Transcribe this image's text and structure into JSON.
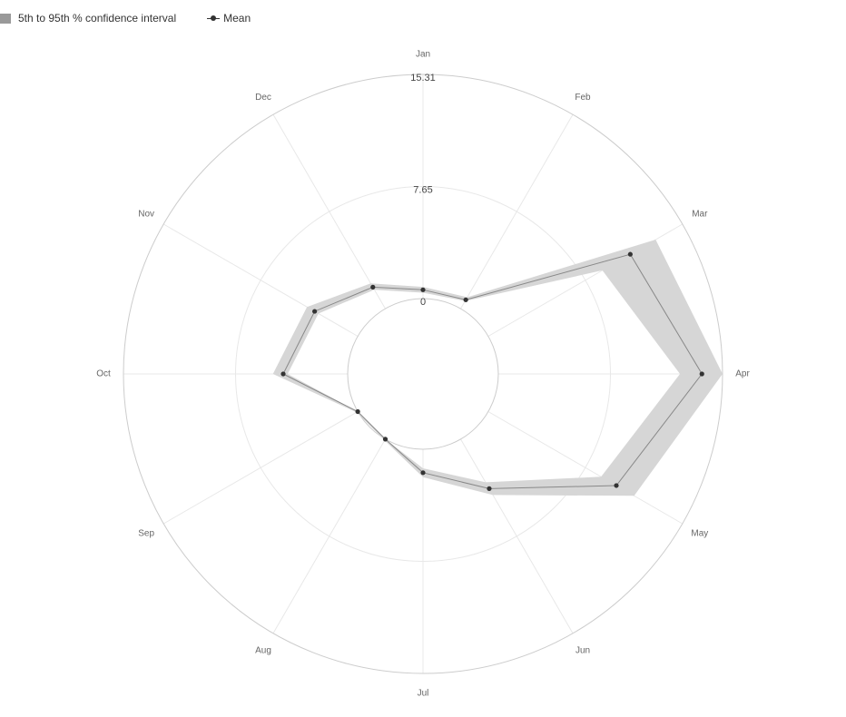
{
  "legend": {
    "band_label": "5th to 95th % confidence interval",
    "mean_label": "Mean"
  },
  "colors": {
    "band": "#d6d6d6",
    "mean": "#333333",
    "grid": "#e8e8e8",
    "outer_ring": "#cccccc"
  },
  "chart_data": {
    "type": "radar",
    "categories": [
      "Jan",
      "Feb",
      "Mar",
      "Apr",
      "May",
      "Jun",
      "Jul",
      "Aug",
      "Sep",
      "Oct",
      "Nov",
      "Dec"
    ],
    "radial_ticks": [
      "0",
      "7.65",
      "15.31"
    ],
    "rlim": [
      0,
      15.31
    ],
    "series": [
      {
        "name": "Mean",
        "values": [
          0.6,
          0.7,
          11.2,
          13.9,
          10.1,
          3.9,
          1.6,
          0.0,
          0.0,
          4.4,
          3.4,
          1.7
        ]
      },
      {
        "name": "5th to 95th % confidence interval",
        "lower": [
          0.4,
          0.6,
          9.0,
          12.4,
          8.9,
          3.4,
          1.3,
          0.0,
          0.0,
          4.1,
          3.1,
          1.5
        ],
        "upper": [
          0.8,
          0.9,
          13.2,
          15.31,
          11.5,
          4.4,
          1.9,
          0.1,
          0.1,
          5.1,
          4.0,
          2.0
        ]
      }
    ],
    "grid": true,
    "legend_position": "top-left"
  }
}
